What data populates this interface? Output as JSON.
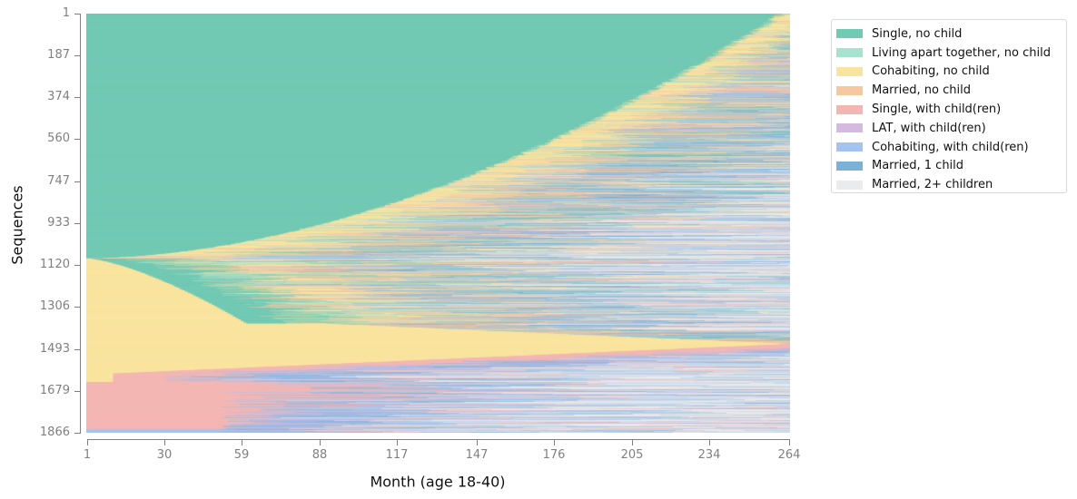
{
  "chart_data": {
    "type": "sequence-index",
    "title": "",
    "xlabel": "Month (age 18-40)",
    "ylabel": "Sequences",
    "xlim": [
      1,
      264
    ],
    "ylim": [
      1,
      1866
    ],
    "x_ticks": [
      1,
      30,
      59,
      88,
      117,
      147,
      176,
      205,
      234,
      264
    ],
    "y_ticks": [
      1,
      187,
      374,
      560,
      747,
      933,
      1120,
      1306,
      1493,
      1679,
      1866
    ],
    "n_sequences": 1866,
    "n_months": 264,
    "grid": false,
    "legend_position": "outside-right-top",
    "states": [
      {
        "label": "Single, no child",
        "color": "#72c9b4"
      },
      {
        "label": "Living apart together, no child",
        "color": "#a5e3cf"
      },
      {
        "label": "Cohabiting, no child",
        "color": "#f9e49f"
      },
      {
        "label": "Married, no child",
        "color": "#f6c89f"
      },
      {
        "label": "Single, with child(ren)",
        "color": "#f4b6b3"
      },
      {
        "label": "LAT, with child(ren)",
        "color": "#d5bae0"
      },
      {
        "label": "Cohabiting, with child(ren)",
        "color": "#a3c3f0"
      },
      {
        "label": "Married, 1 child",
        "color": "#7bb1d6"
      },
      {
        "label": "Married, 2+ children",
        "color": "#e9ebec"
      }
    ],
    "groups": [
      {
        "rows": [
          1,
          1090
        ],
        "initial_state": "Single, no child",
        "note": "sorted by length of initial single spell; spell ends near month 264 at top, month 1 at row ~1090"
      },
      {
        "rows": [
          1091,
          1380
        ],
        "initial_state": "Cohabiting, no child",
        "note": "short cohabitation followed by single spell, transition month grows from ~1 to ~60"
      },
      {
        "rows": [
          1381,
          1640
        ],
        "initial_state": "Cohabiting, no child",
        "note": "long cohabitation, transition to single with child(ren) / mix later for upper rows"
      },
      {
        "rows": [
          1641,
          1866
        ],
        "initial_state": "Single, with child(ren)",
        "note": "starts with single parenthood, followed by cohabiting/married with children"
      }
    ]
  },
  "axes": {
    "xlabel": "Month (age 18-40)",
    "ylabel": "Sequences",
    "x_ticks": [
      "1",
      "30",
      "59",
      "88",
      "117",
      "147",
      "176",
      "205",
      "234",
      "264"
    ],
    "y_ticks": [
      "1",
      "187",
      "374",
      "560",
      "747",
      "933",
      "1120",
      "1306",
      "1493",
      "1679",
      "1866"
    ]
  },
  "legend": {
    "items": [
      {
        "label": "Single, no child",
        "color": "#72c9b4"
      },
      {
        "label": "Living apart together, no child",
        "color": "#a5e3cf"
      },
      {
        "label": "Cohabiting, no child",
        "color": "#f9e49f"
      },
      {
        "label": "Married, no child",
        "color": "#f6c89f"
      },
      {
        "label": "Single, with child(ren)",
        "color": "#f4b6b3"
      },
      {
        "label": "LAT, with child(ren)",
        "color": "#d5bae0"
      },
      {
        "label": "Cohabiting, with child(ren)",
        "color": "#a3c3f0"
      },
      {
        "label": "Married, 1 child",
        "color": "#7bb1d6"
      },
      {
        "label": "Married, 2+ children",
        "color": "#e9ebec"
      }
    ]
  }
}
